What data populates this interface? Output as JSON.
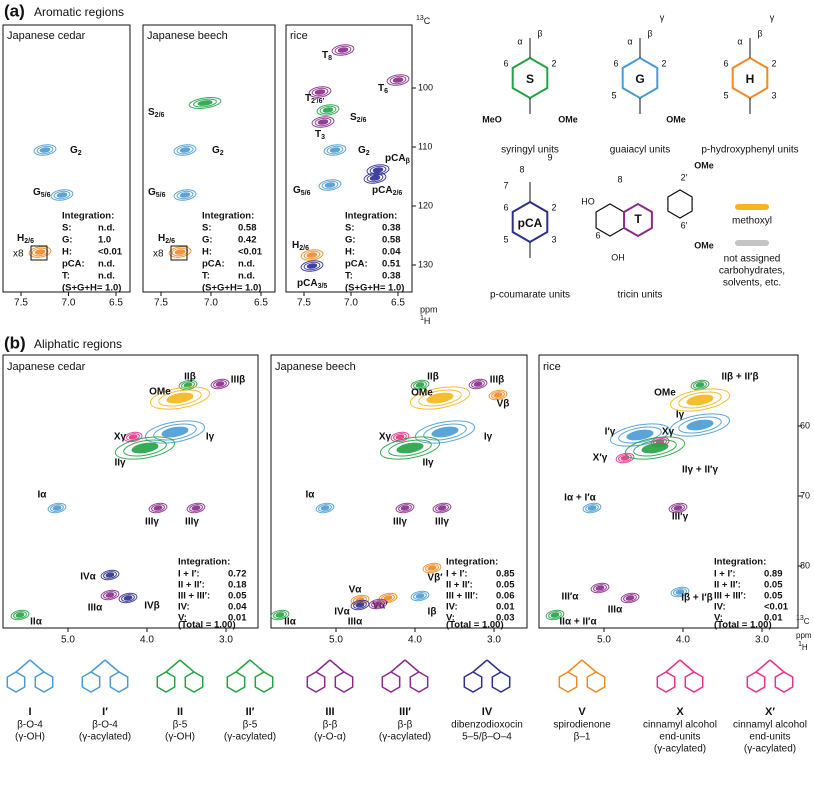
{
  "panel_a": {
    "label": "(a)",
    "title": "Aromatic regions",
    "spectra": [
      {
        "name": "Japanese cedar",
        "annotation": "x8",
        "xticks": [
          "7.5",
          "7.0",
          "6.5"
        ],
        "peaks": [
          {
            "text": "G",
            "sub": "2",
            "color": "#4a9bd4"
          },
          {
            "text": "G",
            "sub": "5/6",
            "color": "#4a9bd4"
          },
          {
            "text": "H",
            "sub": "2/6",
            "color": "#ef8a24"
          }
        ],
        "integration": {
          "title": "Integration:",
          "rows": [
            {
              "key": "S:",
              "value": "n.d.",
              "color": "#23a244"
            },
            {
              "key": "G:",
              "value": "1.0",
              "color": "#4a9bd4"
            },
            {
              "key": "H:",
              "value": "<0.01",
              "color": "#ef8a24"
            },
            {
              "key": "pCA:",
              "value": "n.d.",
              "color": "#2d2f8f"
            },
            {
              "key": "T:",
              "value": "n.d.",
              "color": "#8a2a8a"
            }
          ],
          "total": "(S+G+H= 1.0)"
        }
      },
      {
        "name": "Japanese beech",
        "annotation": "x8",
        "xticks": [
          "7.5",
          "7.0",
          "6.5"
        ],
        "peaks": [
          {
            "text": "S",
            "sub": "2/6",
            "color": "#23a244"
          },
          {
            "text": "G",
            "sub": "2",
            "color": "#4a9bd4"
          },
          {
            "text": "G",
            "sub": "5/6",
            "color": "#4a9bd4"
          },
          {
            "text": "H",
            "sub": "2/6",
            "color": "#ef8a24"
          }
        ],
        "integration": {
          "title": "Integration:",
          "rows": [
            {
              "key": "S:",
              "value": "0.58",
              "color": "#23a244"
            },
            {
              "key": "G:",
              "value": "0.42",
              "color": "#4a9bd4"
            },
            {
              "key": "H:",
              "value": "<0.01",
              "color": "#ef8a24"
            },
            {
              "key": "pCA:",
              "value": "n.d.",
              "color": "#2d2f8f"
            },
            {
              "key": "T:",
              "value": "n.d.",
              "color": "#8a2a8a"
            }
          ],
          "total": "(S+G+H= 1.0)"
        }
      },
      {
        "name": "rice",
        "xticks": [
          "7.5",
          "7.0",
          "6.5"
        ],
        "peaks": [
          {
            "text": "T",
            "sub": "8",
            "color": "#8a2a8a"
          },
          {
            "text": "T",
            "sub": "6",
            "color": "#8a2a8a"
          },
          {
            "text": "T",
            "sub": "2′/6′",
            "color": "#8a2a8a"
          },
          {
            "text": "S",
            "sub": "2/6",
            "color": "#23a244"
          },
          {
            "text": "T",
            "sub": "3",
            "color": "#8a2a8a"
          },
          {
            "text": "G",
            "sub": "2",
            "color": "#4a9bd4"
          },
          {
            "text": "pCA",
            "sub": "β",
            "color": "#2d2f8f"
          },
          {
            "text": "G",
            "sub": "5/6",
            "color": "#4a9bd4"
          },
          {
            "text": "pCA",
            "sub": "2/6",
            "color": "#2d2f8f"
          },
          {
            "text": "H",
            "sub": "2/6",
            "color": "#ef8a24"
          },
          {
            "text": "pCA",
            "sub": "3/5",
            "color": "#2d2f8f"
          }
        ],
        "integration": {
          "title": "Integration:",
          "rows": [
            {
              "key": "S:",
              "value": "0.38",
              "color": "#23a244"
            },
            {
              "key": "G:",
              "value": "0.58",
              "color": "#4a9bd4"
            },
            {
              "key": "H:",
              "value": "0.04",
              "color": "#ef8a24"
            },
            {
              "key": "pCA:",
              "value": "0.51",
              "color": "#2d2f8f"
            },
            {
              "key": "T:",
              "value": "0.38",
              "color": "#8a2a8a"
            }
          ],
          "total": "(S+G+H= 1.0)"
        }
      }
    ],
    "yticks": [
      "100",
      "110",
      "120",
      "130"
    ],
    "y_unit": {
      "sup": "13",
      "text": "C"
    },
    "x_unit": "ppm",
    "x_nucleus": {
      "sup": "1",
      "text": "H"
    },
    "structures": [
      {
        "ring": "S",
        "name": "syringyl units",
        "color": "#23a244",
        "atoms": [
          "MeO",
          "OMe",
          "6",
          "2",
          "α",
          "β"
        ]
      },
      {
        "ring": "G",
        "name": "guaiacyl units",
        "color": "#4a9bd4",
        "atoms": [
          "OMe",
          "6",
          "2",
          "5",
          "α",
          "β",
          "γ"
        ]
      },
      {
        "ring": "H",
        "name": "p-hydroxyphenyl units",
        "color": "#ef8a24",
        "atoms": [
          "6",
          "2",
          "5",
          "3",
          "α",
          "β",
          "γ"
        ]
      },
      {
        "ring": "pCA",
        "name": "p-coumarate units",
        "color": "#2d2f8f",
        "atoms": [
          "9",
          "8",
          "7",
          "6",
          "2",
          "5",
          "3"
        ]
      },
      {
        "ring": "T",
        "name": "tricin units",
        "color": "#8a2a8a",
        "atoms": [
          "OMe",
          "OMe",
          "HO",
          "OH",
          "8",
          "6",
          "2′",
          "6′"
        ]
      }
    ],
    "legend": [
      {
        "name": [
          "methoxyl"
        ],
        "color": "#f5b61b"
      },
      {
        "name": [
          "not assigned",
          "carbohydrates,",
          "solvents, etc."
        ],
        "color": "#c4c4c4"
      }
    ]
  },
  "panel_b": {
    "label": "(b)",
    "title": "Aliphatic regions",
    "spectra": [
      {
        "name": "Japanese cedar",
        "xticks": [
          "5.0",
          "4.0",
          "3.0"
        ],
        "peaks": [
          {
            "text": "IIβ",
            "color": "#23a244"
          },
          {
            "text": "IIIβ",
            "color": "#8a2a8a"
          },
          {
            "text": "OMe",
            "color": "#f5b61b"
          },
          {
            "text": "Xγ",
            "color": "#e6318a"
          },
          {
            "text": "Iγ",
            "color": "#4a9bd4"
          },
          {
            "text": "IIγ",
            "color": "#23a244"
          },
          {
            "text": "Iα",
            "color": "#4a9bd4"
          },
          {
            "text": "IIIγ",
            "color": "#8a2a8a"
          },
          {
            "text": "IIIγ",
            "color": "#8a2a8a"
          },
          {
            "text": "IVα",
            "color": "#2d2f8f"
          },
          {
            "text": "IIIα",
            "color": "#8a2a8a"
          },
          {
            "text": "IVβ",
            "color": "#2d2f8f"
          },
          {
            "text": "IIα",
            "color": "#23a244"
          }
        ],
        "integration": {
          "title": "Integration:",
          "rows": [
            {
              "key": "I + I′:",
              "value": "0.72",
              "color": "#4a9bd4"
            },
            {
              "key": "II + II′:",
              "value": "0.18",
              "color": "#23a244"
            },
            {
              "key": "III + III′:",
              "value": "0.05",
              "color": "#8a2a8a"
            },
            {
              "key": "IV:",
              "value": "0.04",
              "color": "#2d2f8f"
            },
            {
              "key": "V:",
              "value": "0.01",
              "color": "#ef8a24"
            }
          ],
          "total": "(Total = 1.00)"
        }
      },
      {
        "name": "Japanese beech",
        "xticks": [
          "5.0",
          "4.0",
          "3.0"
        ],
        "peaks": [
          {
            "text": "IIβ",
            "color": "#23a244"
          },
          {
            "text": "IIIβ",
            "color": "#8a2a8a"
          },
          {
            "text": "OMe",
            "color": "#f5b61b"
          },
          {
            "text": "Vβ",
            "color": "#ef8a24"
          },
          {
            "text": "Xγ",
            "color": "#e6318a"
          },
          {
            "text": "Iγ",
            "color": "#4a9bd4"
          },
          {
            "text": "IIγ",
            "color": "#23a244"
          },
          {
            "text": "Iα",
            "color": "#4a9bd4"
          },
          {
            "text": "IIIγ",
            "color": "#8a2a8a"
          },
          {
            "text": "IIIγ",
            "color": "#8a2a8a"
          },
          {
            "text": "Vβ′",
            "color": "#ef8a24"
          },
          {
            "text": "Vα",
            "color": "#ef8a24"
          },
          {
            "text": "Vα′",
            "color": "#ef8a24"
          },
          {
            "text": "IVα",
            "color": "#2d2f8f"
          },
          {
            "text": "Iβ",
            "color": "#4a9bd4"
          },
          {
            "text": "IIIα",
            "color": "#8a2a8a"
          },
          {
            "text": "IIα",
            "color": "#23a244"
          }
        ],
        "integration": {
          "title": "Integration:",
          "rows": [
            {
              "key": "I + I′:",
              "value": "0.85",
              "color": "#4a9bd4"
            },
            {
              "key": "II + II′:",
              "value": "0.05",
              "color": "#23a244"
            },
            {
              "key": "III + III′:",
              "value": "0.06",
              "color": "#8a2a8a"
            },
            {
              "key": "IV:",
              "value": "0.01",
              "color": "#2d2f8f"
            },
            {
              "key": "V:",
              "value": "0.03",
              "color": "#ef8a24"
            }
          ],
          "total": "(Total = 1.00)"
        }
      },
      {
        "name": "rice",
        "xticks": [
          "5.0",
          "4.0",
          "3.0"
        ],
        "peaks": [
          {
            "text": "IIβ + II′β",
            "color": "#23a244"
          },
          {
            "text": "OMe",
            "color": "#f5b61b"
          },
          {
            "text": "Iγ",
            "color": "#4a9bd4"
          },
          {
            "text": "I′γ",
            "color": "#4a9bd4"
          },
          {
            "text": "Xγ",
            "color": "#e6318a"
          },
          {
            "text": "X′γ",
            "color": "#e6318a"
          },
          {
            "text": "IIγ + II′γ",
            "color": "#23a244"
          },
          {
            "text": "Iα + I′α",
            "color": "#4a9bd4"
          },
          {
            "text": "III′γ",
            "color": "#8a2a8a"
          },
          {
            "text": "III′α",
            "color": "#8a2a8a"
          },
          {
            "text": "IIIα",
            "color": "#8a2a8a"
          },
          {
            "text": "Iβ + I′β",
            "color": "#4a9bd4"
          },
          {
            "text": "IIα + II′α",
            "color": "#23a244"
          }
        ],
        "integration": {
          "title": "Integration:",
          "rows": [
            {
              "key": "I + I′:",
              "value": "0.89",
              "color": "#4a9bd4"
            },
            {
              "key": "II + II′:",
              "value": "0.05",
              "color": "#23a244"
            },
            {
              "key": "III + III′:",
              "value": "0.05",
              "color": "#8a2a8a"
            },
            {
              "key": "IV:",
              "value": "<0.01",
              "color": "#2d2f8f"
            },
            {
              "key": "V:",
              "value": "0.01",
              "color": "#ef8a24"
            }
          ],
          "total": "(Total = 1.00)"
        }
      }
    ],
    "yticks": [
      "60",
      "70",
      "80"
    ],
    "y_unit": {
      "sup": "13",
      "text": "C"
    },
    "x_unit": "ppm",
    "x_nucleus": {
      "sup": "1",
      "text": "H"
    }
  },
  "substructures": [
    {
      "id": "I",
      "lines": [
        "β-O-4",
        "(γ-OH)"
      ],
      "color": "#4a9bd4"
    },
    {
      "id": "I′",
      "lines": [
        "β-O-4",
        "(γ-acylated)"
      ],
      "color": "#4a9bd4"
    },
    {
      "id": "II",
      "lines": [
        "β-5",
        "(γ-OH)"
      ],
      "color": "#23a244"
    },
    {
      "id": "II′",
      "lines": [
        "β-5",
        "(γ-acylated)"
      ],
      "color": "#23a244"
    },
    {
      "id": "III",
      "lines": [
        "β-β",
        "(γ-O-α)"
      ],
      "color": "#8a2a8a"
    },
    {
      "id": "III′",
      "lines": [
        "β-β",
        "(γ-acylated)"
      ],
      "color": "#8a2a8a"
    },
    {
      "id": "IV",
      "lines": [
        "dibenzodioxocin",
        "5–5/β–O–4"
      ],
      "color": "#2d2f8f"
    },
    {
      "id": "V",
      "lines": [
        "spirodienone",
        "β–1"
      ],
      "color": "#ef8a24"
    },
    {
      "id": "X",
      "lines": [
        "cinnamyl alcohol",
        "end-units",
        "(γ-acylated)"
      ],
      "color": "#e6318a"
    },
    {
      "id": "X′",
      "lines": [
        "cinnamyl alcohol",
        "end-units",
        "(γ-acylated)"
      ],
      "color": "#e6318a"
    }
  ]
}
